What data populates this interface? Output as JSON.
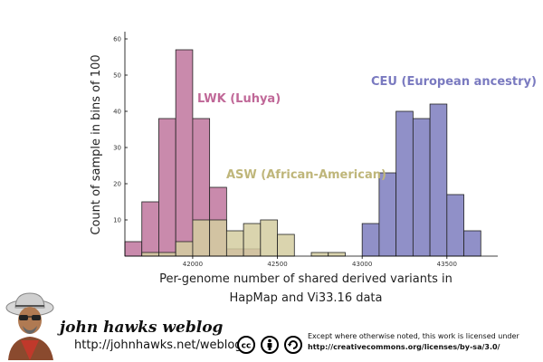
{
  "chart_data": {
    "type": "bar",
    "title": "",
    "xlabel_line1": "Per-genome number of shared derived variants in",
    "xlabel_line2": "HapMap and Vi33.16 data",
    "ylabel": "Count of sample in bins of 100",
    "xlim": [
      41600,
      43800
    ],
    "ylim": [
      0,
      62
    ],
    "bin_width": 100,
    "x_ticks": [
      42000,
      42500,
      43000,
      43500
    ],
    "y_ticks": [
      10,
      20,
      30,
      40,
      50,
      60
    ],
    "grid": false,
    "series": [
      {
        "name": "LWK (Luhya)",
        "color": "#c98aac",
        "bins": [
          {
            "x": 41600,
            "count": 4
          },
          {
            "x": 41700,
            "count": 15
          },
          {
            "x": 41800,
            "count": 38
          },
          {
            "x": 41900,
            "count": 57
          },
          {
            "x": 42000,
            "count": 38
          },
          {
            "x": 42100,
            "count": 19
          },
          {
            "x": 42200,
            "count": 2
          },
          {
            "x": 42300,
            "count": 2
          }
        ]
      },
      {
        "name": "ASW (African-American)",
        "color": "#d4cda0",
        "bins": [
          {
            "x": 41700,
            "count": 1
          },
          {
            "x": 41800,
            "count": 1
          },
          {
            "x": 41900,
            "count": 4
          },
          {
            "x": 42000,
            "count": 10
          },
          {
            "x": 42100,
            "count": 10
          },
          {
            "x": 42200,
            "count": 7
          },
          {
            "x": 42300,
            "count": 9
          },
          {
            "x": 42400,
            "count": 10
          },
          {
            "x": 42500,
            "count": 6
          },
          {
            "x": 42700,
            "count": 1
          },
          {
            "x": 42800,
            "count": 1
          }
        ]
      },
      {
        "name": "CEU (European ancestry)",
        "color": "#9090c8",
        "bins": [
          {
            "x": 43000,
            "count": 9
          },
          {
            "x": 43100,
            "count": 23
          },
          {
            "x": 43200,
            "count": 40
          },
          {
            "x": 43300,
            "count": 38
          },
          {
            "x": 43400,
            "count": 42
          },
          {
            "x": 43500,
            "count": 17
          },
          {
            "x": 43600,
            "count": 7
          }
        ]
      }
    ]
  },
  "footer": {
    "blog_title": "john hawks weblog",
    "blog_url": "http://johnhawks.net/weblog",
    "license_text": "Except where otherwise noted, this work is licensed under",
    "license_url": "http://creativecommons.org/licenses/by-sa/3.0/",
    "icons": [
      "cc-icon",
      "attribution-icon",
      "share-alike-icon"
    ]
  }
}
